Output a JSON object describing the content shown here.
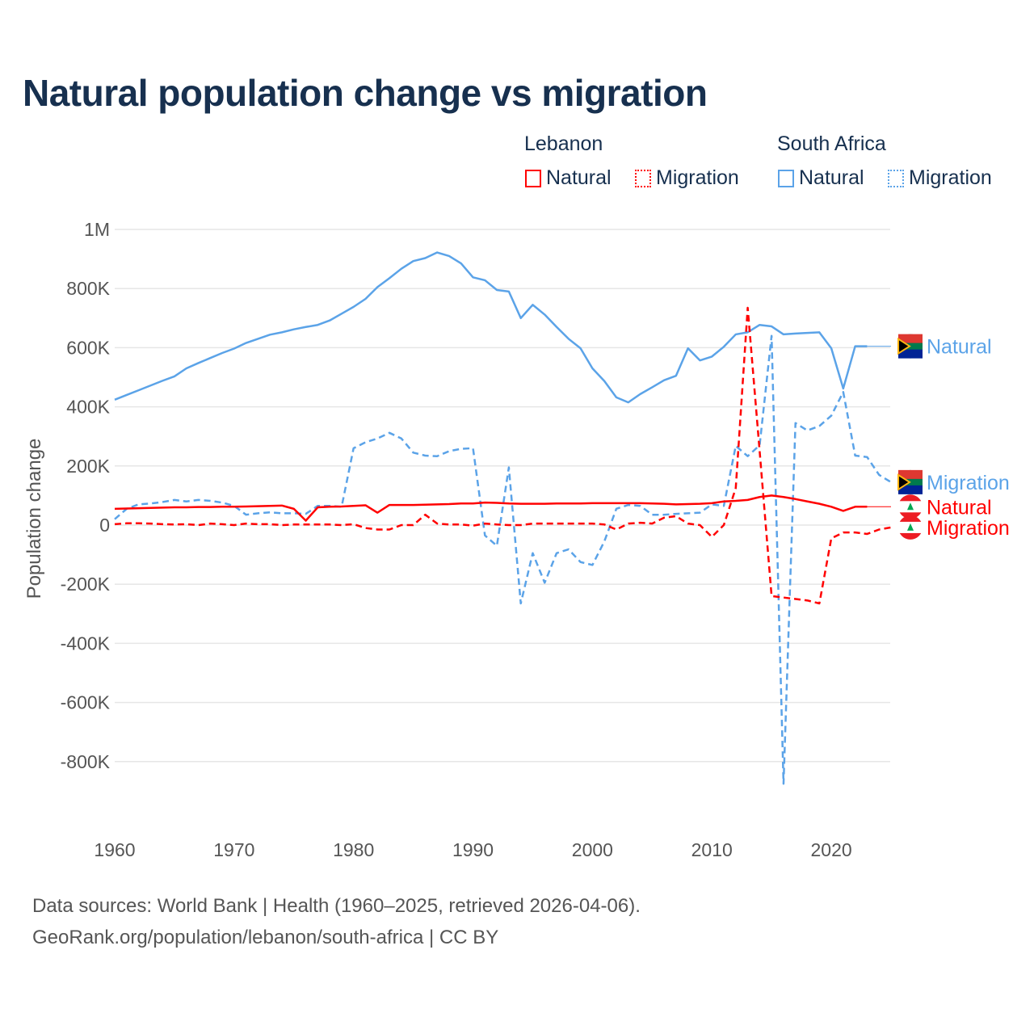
{
  "chart_data": {
    "type": "line",
    "title": "Natural population change vs migration",
    "ylabel": "Population change",
    "xlabel": "",
    "xlim": [
      1960,
      2025
    ],
    "ylim": [
      -1000000,
      1000000
    ],
    "x_ticks": [
      1960,
      1970,
      1980,
      1990,
      2000,
      2010,
      2020
    ],
    "x_tick_labels": [
      "1960",
      "1970",
      "1980",
      "1990",
      "2000",
      "2010",
      "2020"
    ],
    "y_ticks": [
      1000000,
      800000,
      600000,
      400000,
      200000,
      0,
      -200000,
      -400000,
      -600000,
      -800000
    ],
    "y_tick_labels": [
      "1M",
      "800K",
      "600K",
      "400K",
      "200K",
      "0",
      "-200K",
      "-400K",
      "-600K",
      "-800K"
    ],
    "grid": true,
    "legend": {
      "groups": [
        {
          "name": "Lebanon",
          "items": [
            "Natural",
            "Migration"
          ]
        },
        {
          "name": "South Africa",
          "items": [
            "Natural",
            "Migration"
          ]
        }
      ],
      "placement": "top-right"
    },
    "start_year": 1960,
    "series": [
      {
        "name": "South Africa Natural",
        "country": "South Africa",
        "kind": "Natural",
        "end_label": "Natural",
        "color": "#5ba3e8",
        "dash": false,
        "flag": "south-africa",
        "values_k": [
          424,
          440,
          456,
          472,
          488,
          503,
          530,
          548,
          565,
          582,
          597,
          616,
          630,
          644,
          652,
          662,
          670,
          677,
          692,
          715,
          738,
          765,
          805,
          835,
          867,
          893,
          903,
          922,
          910,
          885,
          838,
          828,
          795,
          790,
          700,
          745,
          712,
          670,
          630,
          598,
          530,
          487,
          432,
          415,
          443,
          466,
          490,
          505,
          598,
          557,
          570,
          603,
          645,
          652,
          677,
          672,
          645,
          648,
          650,
          652,
          598,
          462,
          605,
          605
        ],
        "extend_to": 2025
      },
      {
        "name": "South Africa Migration",
        "country": "South Africa",
        "kind": "Migration",
        "end_label": "Migration",
        "color": "#5ba3e8",
        "dash": true,
        "flag": "south-africa",
        "values_k": [
          20,
          55,
          70,
          73,
          78,
          85,
          80,
          85,
          82,
          76,
          65,
          35,
          40,
          43,
          40,
          40,
          38,
          65,
          65,
          62,
          260,
          280,
          293,
          312,
          293,
          245,
          235,
          233,
          250,
          258,
          260,
          -35,
          -70,
          195,
          -265,
          -95,
          -195,
          -95,
          -82,
          -125,
          -135,
          -55,
          55,
          68,
          65,
          35,
          35,
          38,
          40,
          42,
          70,
          65,
          268,
          233,
          270,
          640,
          -875,
          345,
          320,
          335,
          370,
          450,
          235,
          230,
          170,
          145
        ],
        "extend_to": 2025
      },
      {
        "name": "Lebanon Natural",
        "country": "Lebanon",
        "kind": "Natural",
        "end_label": "Natural",
        "color": "#ff0000",
        "dash": false,
        "flag": "lebanon",
        "values_k": [
          55,
          56,
          57,
          58,
          59,
          60,
          60,
          61,
          61,
          62,
          62,
          63,
          64,
          65,
          66,
          55,
          15,
          60,
          62,
          63,
          65,
          67,
          42,
          68,
          68,
          68,
          69,
          70,
          71,
          73,
          73,
          76,
          75,
          73,
          72,
          72,
          72,
          73,
          73,
          73,
          74,
          74,
          74,
          74,
          74,
          73,
          72,
          70,
          71,
          72,
          74,
          80,
          82,
          85,
          95,
          100,
          95,
          88,
          80,
          72,
          62,
          48,
          62,
          62
        ],
        "extend_to": 2025
      },
      {
        "name": "Lebanon Migration",
        "country": "Lebanon",
        "kind": "Migration",
        "end_label": "Migration",
        "color": "#ff0000",
        "dash": true,
        "flag": "lebanon",
        "values_k": [
          3,
          6,
          6,
          5,
          3,
          2,
          3,
          0,
          5,
          3,
          0,
          5,
          3,
          3,
          0,
          2,
          2,
          2,
          2,
          0,
          3,
          -10,
          -15,
          -15,
          0,
          0,
          35,
          5,
          2,
          2,
          -2,
          5,
          2,
          0,
          0,
          5,
          5,
          5,
          5,
          5,
          5,
          2,
          -15,
          5,
          8,
          5,
          25,
          30,
          5,
          0,
          -40,
          0,
          125,
          735,
          250,
          -240,
          -245,
          -250,
          -255,
          -265,
          -45,
          -25,
          -25,
          -30,
          -15,
          -8
        ],
        "extend_to": 2025
      }
    ]
  },
  "footer": {
    "line1": "Data sources: World Bank | Health (1960–2025, retrieved 2026-04-06).",
    "line2": "GeoRank.org/population/lebanon/south-africa | CC BY"
  }
}
